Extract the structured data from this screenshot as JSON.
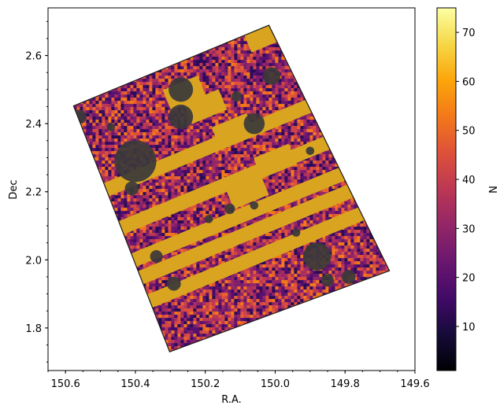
{
  "chart_data": {
    "type": "heatmap",
    "title": "",
    "xlabel": "R.A.",
    "ylabel": "Dec",
    "xlim": [
      150.65,
      149.6
    ],
    "ylim": [
      1.675,
      2.74
    ],
    "x_inverted": true,
    "x_ticks": [
      150.6,
      150.4,
      150.2,
      150.0,
      149.8,
      149.6
    ],
    "x_tick_labels": [
      "150.6",
      "150.4",
      "150.2",
      "150.0",
      "149.8",
      "149.6"
    ],
    "y_ticks": [
      1.8,
      2.0,
      2.2,
      2.4,
      2.6
    ],
    "y_tick_labels": [
      "1.8",
      "2.0",
      "2.2",
      "2.4",
      "2.6"
    ],
    "footprint_corners": [
      {
        "ra": 150.577,
        "dec": 2.452
      },
      {
        "ra": 150.018,
        "dec": 2.689
      },
      {
        "ra": 149.673,
        "dec": 1.968
      },
      {
        "ra": 150.302,
        "dec": 1.73
      }
    ],
    "masked_fill_color": "#d9a520",
    "masked_rows_dec": [
      2.36,
      2.23,
      2.12,
      2.06,
      1.98
    ],
    "masked_blocks": [
      {
        "ra": 150.03,
        "dec": 2.66
      },
      {
        "ra": 150.2,
        "dec": 2.45
      },
      {
        "ra": 150.26,
        "dec": 2.49
      },
      {
        "ra": 150.12,
        "dec": 2.38
      },
      {
        "ra": 150.0,
        "dec": 2.29
      },
      {
        "ra": 150.08,
        "dec": 2.2
      }
    ],
    "star_masks": [
      {
        "ra": 150.4,
        "dec": 2.29,
        "r": 0.06
      },
      {
        "ra": 150.27,
        "dec": 2.5,
        "r": 0.035
      },
      {
        "ra": 150.27,
        "dec": 2.42,
        "r": 0.035
      },
      {
        "ra": 150.01,
        "dec": 2.54,
        "r": 0.025
      },
      {
        "ra": 150.06,
        "dec": 2.4,
        "r": 0.03
      },
      {
        "ra": 149.88,
        "dec": 2.01,
        "r": 0.04
      },
      {
        "ra": 150.56,
        "dec": 2.42,
        "r": 0.02
      },
      {
        "ra": 150.41,
        "dec": 2.21,
        "r": 0.02
      },
      {
        "ra": 150.11,
        "dec": 2.48,
        "r": 0.015
      },
      {
        "ra": 149.96,
        "dec": 1.78,
        "r": 0.02
      },
      {
        "ra": 150.29,
        "dec": 1.93,
        "r": 0.02
      },
      {
        "ra": 150.34,
        "dec": 2.01,
        "r": 0.018
      },
      {
        "ra": 150.13,
        "dec": 2.15,
        "r": 0.015
      },
      {
        "ra": 149.79,
        "dec": 1.95,
        "r": 0.02
      },
      {
        "ra": 149.85,
        "dec": 1.94,
        "r": 0.018
      },
      {
        "ra": 150.06,
        "dec": 2.16,
        "r": 0.012
      },
      {
        "ra": 149.94,
        "dec": 2.08,
        "r": 0.012
      },
      {
        "ra": 150.47,
        "dec": 2.39,
        "r": 0.012
      },
      {
        "ra": 150.19,
        "dec": 2.12,
        "r": 0.012
      },
      {
        "ra": 149.9,
        "dec": 2.32,
        "r": 0.012
      }
    ],
    "colorbar": {
      "label": "N",
      "range": [
        1,
        75
      ],
      "ticks": [
        10,
        20,
        30,
        40,
        50,
        60,
        70
      ],
      "tick_labels": [
        "10",
        "20",
        "30",
        "40",
        "50",
        "60",
        "70"
      ],
      "colormap": "inferno"
    },
    "grid": false
  }
}
